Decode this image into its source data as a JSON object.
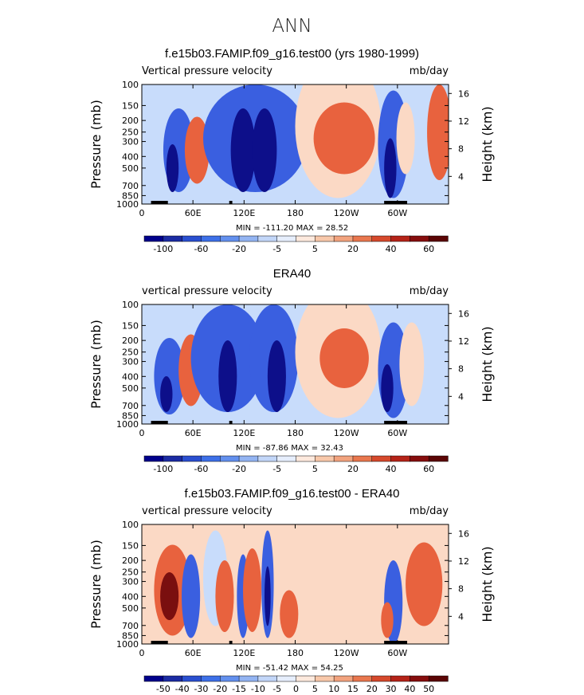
{
  "figure_title": "ANN",
  "colors": {
    "blue_deep": "#0d0f8a",
    "blue": "#3a5fe0",
    "blue_light": "#c8dcfb",
    "white": "#ffffff",
    "red_light": "#fbd9c5",
    "red": "#e8623e",
    "red_deep": "#7a0f0f",
    "land": "#000000"
  },
  "chart_data": [
    {
      "type": "heatmap",
      "title": "f.e15b03.FAMIP.f09_g16.test00 (yrs 1980-1999)",
      "left_label": "Vertical pressure velocity",
      "right_label": "mb/day",
      "ylabel": "Pressure (mb)",
      "y2label": "Height (km)",
      "y_ticks": [
        "100",
        "150",
        "200",
        "250",
        "300",
        "400",
        "500",
        "700",
        "850",
        "1000"
      ],
      "y2_ticks": [
        "16",
        "12",
        "8",
        "4"
      ],
      "x_ticks": [
        "0",
        "60E",
        "120E",
        "180",
        "120W",
        "60W"
      ],
      "min_max": "MIN = -111.20   MAX =  28.52",
      "colorbar_levels": [
        -100,
        -80,
        -60,
        -40,
        -20,
        -10,
        -5,
        0,
        5,
        10,
        20,
        30,
        40,
        50,
        60
      ],
      "colorbar_labels": [
        "-100",
        "-60",
        "-20",
        "-5",
        "5",
        "20",
        "40",
        "60"
      ],
      "colorbar_colors": [
        "#00008b",
        "#1b2ba3",
        "#2a4fd0",
        "#3d70e8",
        "#6390ee",
        "#93b4f2",
        "#c2d6f8",
        "#e6eefc",
        "#fde9dd",
        "#f8c8aa",
        "#f2a37e",
        "#e9774e",
        "#d6492c",
        "#b52318",
        "#860d0d",
        "#5b0505"
      ]
    },
    {
      "type": "heatmap",
      "title": "ERA40",
      "left_label": "vertical pressure velocity",
      "right_label": "mb/day",
      "ylabel": "Pressure (mb)",
      "y2label": "Height (km)",
      "y_ticks": [
        "100",
        "150",
        "200",
        "250",
        "300",
        "400",
        "500",
        "700",
        "850",
        "1000"
      ],
      "y2_ticks": [
        "16",
        "12",
        "8",
        "4"
      ],
      "x_ticks": [
        "0",
        "60E",
        "120E",
        "180",
        "120W",
        "60W"
      ],
      "min_max": "MIN =  -87.86   MAX =  32.43",
      "colorbar_levels": [
        -100,
        -80,
        -60,
        -40,
        -20,
        -10,
        -5,
        0,
        5,
        10,
        20,
        30,
        40,
        50,
        60
      ],
      "colorbar_labels": [
        "-100",
        "-60",
        "-20",
        "-5",
        "5",
        "20",
        "40",
        "60"
      ],
      "colorbar_colors": [
        "#00008b",
        "#1b2ba3",
        "#2a4fd0",
        "#3d70e8",
        "#6390ee",
        "#93b4f2",
        "#c2d6f8",
        "#e6eefc",
        "#fde9dd",
        "#f8c8aa",
        "#f2a37e",
        "#e9774e",
        "#d6492c",
        "#b52318",
        "#860d0d",
        "#5b0505"
      ]
    },
    {
      "type": "heatmap",
      "title": "f.e15b03.FAMIP.f09_g16.test00 - ERA40",
      "left_label": "vertical pressure velocity",
      "right_label": "mb/day",
      "ylabel": "Pressure (mb)",
      "y2label": "Height (km)",
      "y_ticks": [
        "100",
        "150",
        "200",
        "250",
        "300",
        "400",
        "500",
        "700",
        "850",
        "1000"
      ],
      "y2_ticks": [
        "16",
        "12",
        "8",
        "4"
      ],
      "x_ticks": [
        "0",
        "60E",
        "120E",
        "180",
        "120W",
        "60W"
      ],
      "min_max": "MIN =  -51.42   MAX =  54.25",
      "colorbar_levels": [
        -50,
        -40,
        -30,
        -20,
        -15,
        -10,
        -5,
        0,
        5,
        10,
        15,
        20,
        30,
        40,
        50
      ],
      "colorbar_labels": [
        "-50",
        "-40",
        "-30",
        "-20",
        "-15",
        "-10",
        "-5",
        "0",
        "5",
        "10",
        "15",
        "20",
        "30",
        "40",
        "50"
      ],
      "colorbar_colors": [
        "#00008b",
        "#1b2ba3",
        "#2a4fd0",
        "#3d70e8",
        "#6390ee",
        "#93b4f2",
        "#c2d6f8",
        "#e6eefc",
        "#fde9dd",
        "#f8c8aa",
        "#f2a37e",
        "#e9774e",
        "#d6492c",
        "#b52318",
        "#860d0d",
        "#5b0505"
      ]
    }
  ]
}
